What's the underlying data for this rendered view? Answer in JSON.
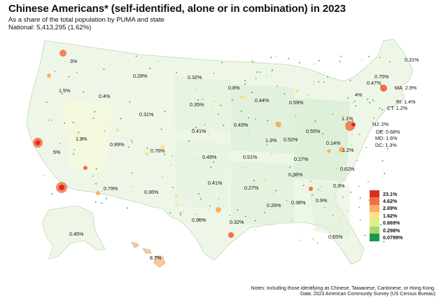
{
  "header": {
    "title": "Chinese Americans* (self-identified, alone or in combination) in 2023",
    "subtitle": "As a share of the total population by PUMA and state",
    "national": "National: 5,413,295 (1.62%)"
  },
  "state_labels": [
    {
      "id": "wa",
      "text": "3%"
    },
    {
      "id": "or",
      "text": "1.5%"
    },
    {
      "id": "ca",
      "text": "5%"
    },
    {
      "id": "nv",
      "text": "1.9%"
    },
    {
      "id": "id",
      "text": "0.4%"
    },
    {
      "id": "mt",
      "text": "0.28%"
    },
    {
      "id": "wy",
      "text": "0.31%"
    },
    {
      "id": "ut",
      "text": "0.89%"
    },
    {
      "id": "az",
      "text": "0.79%"
    },
    {
      "id": "co",
      "text": "0.76%"
    },
    {
      "id": "nm",
      "text": "0.36%"
    },
    {
      "id": "nd",
      "text": "0.32%"
    },
    {
      "id": "sd",
      "text": "0.35%"
    },
    {
      "id": "ne",
      "text": "0.41%"
    },
    {
      "id": "ks",
      "text": "0.49%"
    },
    {
      "id": "ok",
      "text": "0.41%"
    },
    {
      "id": "tx",
      "text": "0.96%"
    },
    {
      "id": "mn",
      "text": "0.8%"
    },
    {
      "id": "ia",
      "text": "0.43%"
    },
    {
      "id": "mo",
      "text": "0.51%"
    },
    {
      "id": "ar",
      "text": "0.27%"
    },
    {
      "id": "la",
      "text": "0.26%"
    },
    {
      "id": "wi",
      "text": "0.44%"
    },
    {
      "id": "il",
      "text": "1.3%"
    },
    {
      "id": "mi",
      "text": "0.59%"
    },
    {
      "id": "in",
      "text": "0.52%"
    },
    {
      "id": "oh",
      "text": "0.55%"
    },
    {
      "id": "ky",
      "text": "0.27%"
    },
    {
      "id": "tn",
      "text": "0.36%"
    },
    {
      "id": "ms",
      "text": "0.38%"
    },
    {
      "id": "al",
      "text": "0.32%"
    },
    {
      "id": "ga",
      "text": "0.9%"
    },
    {
      "id": "fl",
      "text": "0.65%"
    },
    {
      "id": "sc",
      "text": "0.3%"
    },
    {
      "id": "nc",
      "text": "0.62%"
    },
    {
      "id": "va",
      "text": "1.2%"
    },
    {
      "id": "wv",
      "text": "0.14%"
    },
    {
      "id": "pa",
      "text": "1.1%"
    },
    {
      "id": "ny",
      "text": "4%"
    },
    {
      "id": "vt",
      "text": "0.47%"
    },
    {
      "id": "nh",
      "text": "0.75%"
    },
    {
      "id": "me",
      "text": "0.31%"
    },
    {
      "id": "ak",
      "text": "0.45%"
    },
    {
      "id": "hi",
      "text": "8.7%"
    }
  ],
  "callouts": [
    {
      "id": "ma",
      "text": "MA: 2.9%"
    },
    {
      "id": "ri",
      "text": "RI: 1.4%"
    },
    {
      "id": "ct",
      "text": "CT: 1.2%"
    },
    {
      "id": "nj",
      "text": "NJ: 2%"
    },
    {
      "id": "de",
      "text": "DE: 0.68%"
    },
    {
      "id": "md",
      "text": "MD: 1.6%"
    },
    {
      "id": "dc",
      "text": "DC: 1.3%"
    }
  ],
  "legend": {
    "items": [
      {
        "label": "23.1%",
        "color": "#d7301f"
      },
      {
        "label": "4.62%",
        "color": "#f46d43"
      },
      {
        "label": "2.39%",
        "color": "#fdae61"
      },
      {
        "label": "1.62%",
        "color": "#fee08b"
      },
      {
        "label": "0.669%",
        "color": "#d9ef8b"
      },
      {
        "label": "0.298%",
        "color": "#a6d96a"
      },
      {
        "label": "0.0799%",
        "color": "#1a9850"
      }
    ]
  },
  "notes": {
    "line1": "Notes: Including those identifying as Chinese, Taiwanese, Cantonese, or Hong Kong.",
    "line2": "Data: 2023 American Community Survey (US Census Bureau)"
  }
}
